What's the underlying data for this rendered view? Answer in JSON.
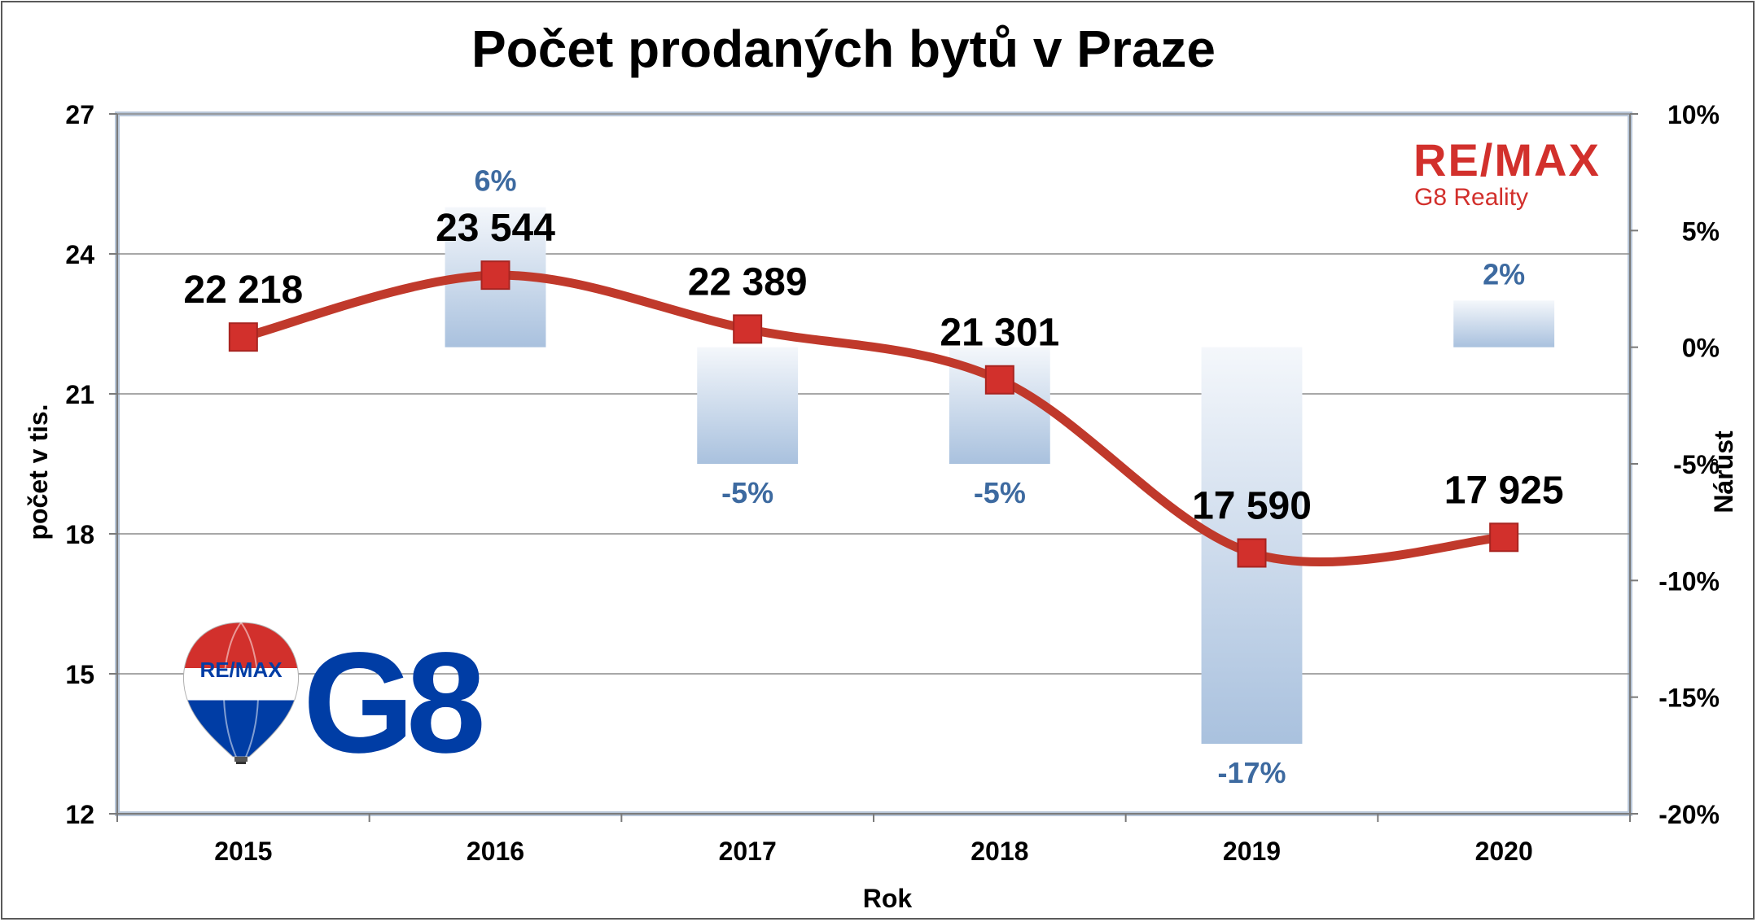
{
  "chart_data": {
    "type": "bar+line",
    "title": "Počet prodaných bytů v Praze",
    "xlabel": "Rok",
    "ylabel": "počet v tis.",
    "y2label": "Nárůst",
    "categories": [
      "2015",
      "2016",
      "2017",
      "2018",
      "2019",
      "2020"
    ],
    "ylim": [
      12,
      27
    ],
    "yticks": [
      "12",
      "15",
      "18",
      "21",
      "24",
      "27"
    ],
    "y2lim": [
      -20,
      10
    ],
    "y2ticks": [
      "-20%",
      "-15%",
      "-10%",
      "-5%",
      "0%",
      "5%",
      "10%"
    ],
    "series": [
      {
        "type": "line",
        "axis": "left",
        "values": [
          22.218,
          23.544,
          22.389,
          21.301,
          17.59,
          17.925
        ],
        "labels": [
          "22 218",
          "23 544",
          "22 389",
          "21 301",
          "17 590",
          "17 925"
        ],
        "color": "#c0392b"
      },
      {
        "type": "bar",
        "axis": "right",
        "values": [
          null,
          6,
          -5,
          -5,
          -17,
          2
        ],
        "labels": [
          "",
          "6%",
          "-5%",
          "-5%",
          "-17%",
          "2%"
        ],
        "color": "#a9c1de"
      }
    ],
    "grid": true
  },
  "logos": {
    "top_right_brand": "RE/MAX",
    "top_right_sub": "G8 Reality",
    "balloon_text": "RE/MAX",
    "bottom_left_brand": "G8"
  },
  "colors": {
    "line": "#c0392b",
    "marker": "#d2302c",
    "bar": "#a9c1de",
    "pct_text": "#3d6aa0",
    "remax_red": "#d2302c",
    "remax_blue": "#003da5"
  }
}
